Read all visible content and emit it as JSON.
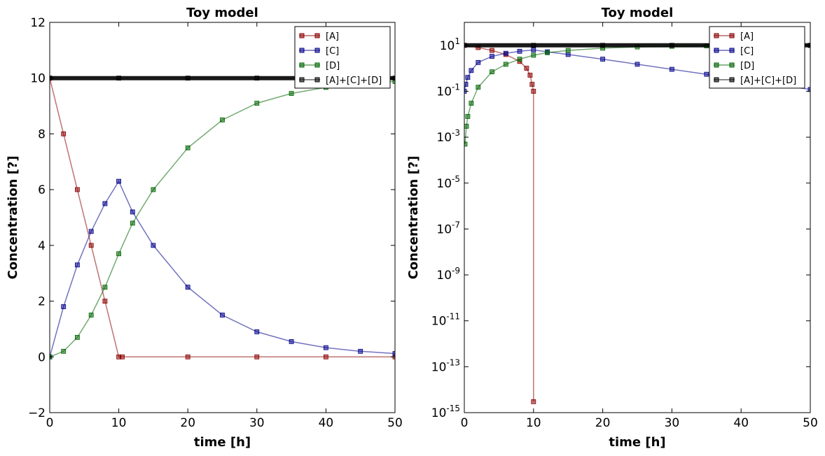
{
  "chart_data": [
    {
      "type": "line",
      "title": "Toy model",
      "xlabel": "time [h]",
      "ylabel": "Concentration [?]",
      "yscale": "linear",
      "xlim": [
        0,
        50
      ],
      "ylim": [
        -2,
        12
      ],
      "xticks": [
        "0",
        "10",
        "20",
        "30",
        "40",
        "50"
      ],
      "yticks": [
        "−2",
        "0",
        "2",
        "4",
        "6",
        "8",
        "10",
        "12"
      ],
      "grid": false,
      "legend_position": "top-right",
      "series": [
        {
          "name": "[A]",
          "color": "#8b0000",
          "x": [
            0,
            2,
            4,
            6,
            8,
            10,
            10.5,
            20,
            30,
            40,
            50
          ],
          "y": [
            10,
            8,
            6,
            4,
            2,
            0,
            0,
            0,
            0,
            0,
            0
          ]
        },
        {
          "name": "[C]",
          "color": "#00008b",
          "x": [
            0,
            2,
            4,
            6,
            8,
            10,
            12,
            15,
            20,
            25,
            30,
            35,
            40,
            45,
            50
          ],
          "y": [
            0,
            1.8,
            3.3,
            4.5,
            5.5,
            6.3,
            5.2,
            4.0,
            2.5,
            1.5,
            0.9,
            0.55,
            0.33,
            0.2,
            0.12
          ]
        },
        {
          "name": "[D]",
          "color": "#006400",
          "x": [
            0,
            2,
            4,
            6,
            8,
            10,
            12,
            15,
            20,
            25,
            30,
            35,
            40,
            45,
            50
          ],
          "y": [
            0,
            0.2,
            0.7,
            1.5,
            2.5,
            3.7,
            4.8,
            6.0,
            7.5,
            8.5,
            9.1,
            9.45,
            9.67,
            9.8,
            9.88
          ]
        },
        {
          "name": "[A]+[C]+[D]",
          "color": "#000000",
          "x": [
            0,
            10,
            20,
            30,
            40,
            50
          ],
          "y": [
            10,
            10,
            10,
            10,
            10,
            10
          ]
        }
      ]
    },
    {
      "type": "line",
      "title": "Toy model",
      "xlabel": "time [h]",
      "ylabel": "Concentration [?]",
      "yscale": "log",
      "xlim": [
        0,
        50
      ],
      "ylim": [
        1e-15,
        100
      ],
      "xticks": [
        "0",
        "10",
        "20",
        "30",
        "40",
        "50"
      ],
      "yticks": [
        {
          "base": "10",
          "exp": "-15"
        },
        {
          "base": "10",
          "exp": "-13"
        },
        {
          "base": "10",
          "exp": "-11"
        },
        {
          "base": "10",
          "exp": "-9"
        },
        {
          "base": "10",
          "exp": "-7"
        },
        {
          "base": "10",
          "exp": "-5"
        },
        {
          "base": "10",
          "exp": "-3"
        },
        {
          "base": "10",
          "exp": "-1"
        },
        {
          "base": "10",
          "exp": "1"
        }
      ],
      "grid": false,
      "legend_position": "top-right",
      "series": [
        {
          "name": "[A]",
          "color": "#8b0000",
          "x": [
            0,
            2,
            4,
            6,
            8,
            9,
            9.5,
            9.8,
            10,
            10
          ],
          "y": [
            10,
            8,
            6,
            4,
            2,
            1,
            0.5,
            0.2,
            0.1,
            3e-15
          ]
        },
        {
          "name": "[C]",
          "color": "#00008b",
          "x": [
            0,
            0.2,
            0.5,
            1,
            2,
            4,
            6,
            8,
            10,
            12,
            15,
            20,
            25,
            30,
            35,
            40,
            45,
            50
          ],
          "y": [
            0.1,
            0.2,
            0.4,
            0.8,
            1.8,
            3.3,
            4.5,
            5.5,
            6.3,
            5.2,
            4.0,
            2.5,
            1.5,
            0.9,
            0.55,
            0.33,
            0.2,
            0.12
          ]
        },
        {
          "name": "[D]",
          "color": "#006400",
          "x": [
            0.1,
            0.3,
            0.5,
            1,
            2,
            4,
            6,
            8,
            10,
            12,
            15,
            20,
            25,
            30,
            35,
            40,
            45,
            50
          ],
          "y": [
            0.0005,
            0.003,
            0.008,
            0.03,
            0.15,
            0.7,
            1.5,
            2.5,
            3.7,
            4.8,
            6.0,
            7.5,
            8.5,
            9.1,
            9.45,
            9.67,
            9.8,
            9.88
          ]
        },
        {
          "name": "[A]+[C]+[D]",
          "color": "#000000",
          "x": [
            0,
            10,
            20,
            30,
            40,
            50
          ],
          "y": [
            10,
            10,
            10,
            10,
            10,
            10
          ]
        }
      ]
    }
  ]
}
